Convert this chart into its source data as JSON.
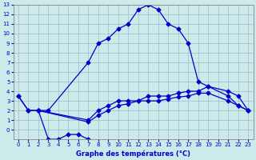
{
  "title": "Graphe des températures (°C)",
  "background_color": "#cceaea",
  "grid_color": "#99bbcc",
  "line_color": "#0000cc",
  "xlim": [
    -0.5,
    23.5
  ],
  "ylim": [
    -1,
    13
  ],
  "xticks": [
    0,
    1,
    2,
    3,
    4,
    5,
    6,
    7,
    8,
    9,
    10,
    11,
    12,
    13,
    14,
    15,
    16,
    17,
    18,
    19,
    20,
    21,
    22,
    23
  ],
  "yticks": [
    0,
    1,
    2,
    3,
    4,
    5,
    6,
    7,
    8,
    9,
    10,
    11,
    12,
    13
  ],
  "series": [
    {
      "x": [
        0,
        1,
        2,
        3,
        7,
        8,
        9,
        10,
        11,
        12,
        13,
        14,
        15,
        16,
        17,
        18,
        19,
        21,
        22,
        23
      ],
      "y": [
        3.5,
        2,
        2,
        2,
        7,
        9,
        9.5,
        10.5,
        11,
        12.5,
        13,
        12.5,
        11,
        10.5,
        9,
        5,
        4.5,
        3.5,
        2.5,
        2
      ]
    },
    {
      "x": [
        0,
        1,
        2,
        3,
        4,
        5,
        6,
        7
      ],
      "y": [
        3.5,
        2,
        2,
        -1,
        -1,
        -0.5,
        -0.5,
        -1
      ]
    },
    {
      "x": [
        2,
        7,
        8,
        9,
        10,
        11,
        12,
        13,
        14,
        15,
        16,
        17,
        18,
        19,
        21,
        22,
        23
      ],
      "y": [
        2,
        1,
        2,
        2.5,
        3,
        3,
        3,
        3.5,
        3.5,
        3.5,
        3.8,
        4,
        4,
        4.5,
        4,
        3.5,
        2
      ]
    },
    {
      "x": [
        2,
        7,
        8,
        9,
        10,
        11,
        12,
        13,
        14,
        15,
        16,
        17,
        18,
        19,
        21,
        22,
        23
      ],
      "y": [
        2,
        0.8,
        1.5,
        2,
        2.5,
        2.7,
        3,
        3,
        3,
        3.2,
        3.4,
        3.5,
        3.8,
        3.8,
        3,
        2.5,
        2
      ]
    }
  ]
}
